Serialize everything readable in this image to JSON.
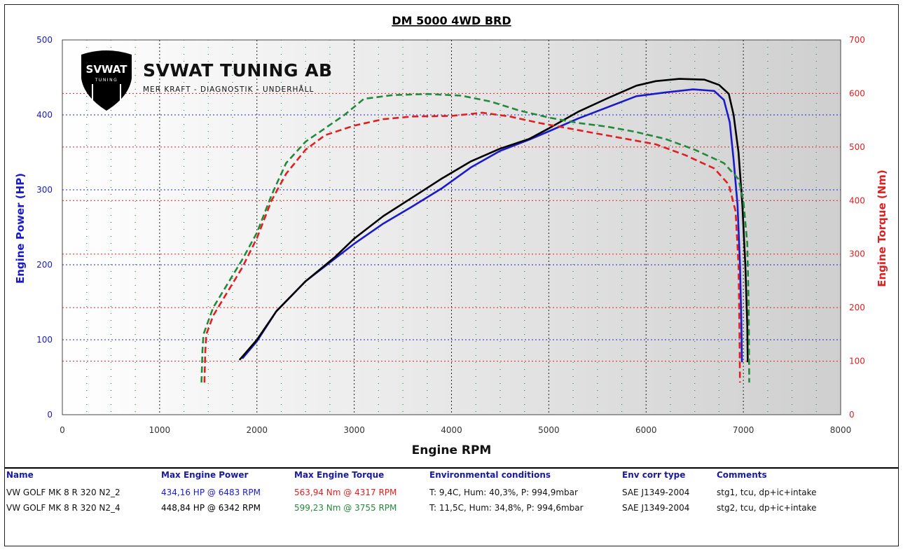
{
  "logo": {
    "badge_text": "SVWAT",
    "badge_sub": "TUNING",
    "name": "SVWAT TUNING AB",
    "tagline": "MER KRAFT - DIAGNOSTIK - UNDERHÅLL"
  },
  "chart_data": {
    "type": "line",
    "title": "DM 5000 4WD BRD",
    "xlabel": "Engine RPM",
    "ylabel_left": "Engine Power (HP)",
    "ylabel_right": "Engine Torque (Nm)",
    "xlim": [
      0,
      8000
    ],
    "ylim_left": [
      0,
      500
    ],
    "ylim_right": [
      0,
      700
    ],
    "x_ticks": [
      "0",
      "1000",
      "2000",
      "3000",
      "4000",
      "5000",
      "6000",
      "7000",
      "8000"
    ],
    "y_left_ticks": [
      "0",
      "100",
      "200",
      "300",
      "400",
      "500"
    ],
    "y_right_ticks": [
      "0",
      "100",
      "200",
      "300",
      "400",
      "500",
      "600",
      "700"
    ],
    "grid": true,
    "series": [
      {
        "name": "VW GOLF MK 8 R 320 N2_2 power",
        "axis": "left",
        "color": "#1a1acc",
        "dash": "solid",
        "points": [
          [
            1850,
            75
          ],
          [
            2000,
            98
          ],
          [
            2200,
            138
          ],
          [
            2500,
            178
          ],
          [
            2800,
            208
          ],
          [
            3000,
            228
          ],
          [
            3300,
            255
          ],
          [
            3600,
            278
          ],
          [
            3900,
            302
          ],
          [
            4200,
            330
          ],
          [
            4500,
            352
          ],
          [
            4800,
            367
          ],
          [
            5000,
            378
          ],
          [
            5300,
            395
          ],
          [
            5600,
            410
          ],
          [
            5900,
            425
          ],
          [
            6200,
            430
          ],
          [
            6483,
            434
          ],
          [
            6700,
            432
          ],
          [
            6800,
            420
          ],
          [
            6860,
            390
          ],
          [
            6900,
            340
          ],
          [
            6940,
            280
          ],
          [
            6965,
            200
          ],
          [
            6980,
            120
          ],
          [
            6985,
            70
          ]
        ]
      },
      {
        "name": "VW GOLF MK 8 R 320 N2_4 power",
        "axis": "left",
        "color": "#000000",
        "dash": "solid",
        "points": [
          [
            1820,
            73
          ],
          [
            2000,
            100
          ],
          [
            2200,
            138
          ],
          [
            2500,
            178
          ],
          [
            2800,
            210
          ],
          [
            3000,
            235
          ],
          [
            3300,
            265
          ],
          [
            3600,
            290
          ],
          [
            3900,
            315
          ],
          [
            4200,
            338
          ],
          [
            4500,
            355
          ],
          [
            4800,
            368
          ],
          [
            5000,
            382
          ],
          [
            5300,
            404
          ],
          [
            5600,
            422
          ],
          [
            5900,
            439
          ],
          [
            6100,
            445
          ],
          [
            6342,
            448
          ],
          [
            6600,
            447
          ],
          [
            6750,
            440
          ],
          [
            6850,
            428
          ],
          [
            6900,
            400
          ],
          [
            6950,
            350
          ],
          [
            6990,
            280
          ],
          [
            7020,
            200
          ],
          [
            7040,
            120
          ],
          [
            7045,
            70
          ]
        ]
      },
      {
        "name": "VW GOLF MK 8 R 320 N2_2 torque",
        "axis": "right",
        "color": "#e02020",
        "dash": "dashed",
        "points": [
          [
            1460,
            60
          ],
          [
            1470,
            120
          ],
          [
            1480,
            150
          ],
          [
            1550,
            185
          ],
          [
            1700,
            230
          ],
          [
            1850,
            275
          ],
          [
            2000,
            330
          ],
          [
            2150,
            400
          ],
          [
            2300,
            450
          ],
          [
            2500,
            495
          ],
          [
            2700,
            522
          ],
          [
            3000,
            540
          ],
          [
            3300,
            552
          ],
          [
            3600,
            557
          ],
          [
            4000,
            558
          ],
          [
            4317,
            564
          ],
          [
            4600,
            557
          ],
          [
            4900,
            545
          ],
          [
            5200,
            535
          ],
          [
            5500,
            525
          ],
          [
            5800,
            515
          ],
          [
            6100,
            505
          ],
          [
            6400,
            485
          ],
          [
            6700,
            460
          ],
          [
            6850,
            430
          ],
          [
            6920,
            380
          ],
          [
            6950,
            280
          ],
          [
            6960,
            150
          ],
          [
            6965,
            60
          ]
        ]
      },
      {
        "name": "VW GOLF MK 8 R 320 N2_4 torque",
        "axis": "right",
        "color": "#228a3a",
        "dash": "dashed",
        "points": [
          [
            1430,
            60
          ],
          [
            1440,
            120
          ],
          [
            1450,
            150
          ],
          [
            1550,
            200
          ],
          [
            1700,
            245
          ],
          [
            1850,
            290
          ],
          [
            2000,
            340
          ],
          [
            2150,
            410
          ],
          [
            2300,
            470
          ],
          [
            2500,
            510
          ],
          [
            2700,
            535
          ],
          [
            2900,
            560
          ],
          [
            3100,
            590
          ],
          [
            3400,
            597
          ],
          [
            3755,
            599
          ],
          [
            4100,
            596
          ],
          [
            4400,
            585
          ],
          [
            4700,
            568
          ],
          [
            5000,
            555
          ],
          [
            5300,
            545
          ],
          [
            5600,
            538
          ],
          [
            5900,
            528
          ],
          [
            6200,
            515
          ],
          [
            6500,
            495
          ],
          [
            6800,
            470
          ],
          [
            6950,
            440
          ],
          [
            7000,
            400
          ],
          [
            7040,
            320
          ],
          [
            7055,
            200
          ],
          [
            7060,
            60
          ]
        ]
      }
    ]
  },
  "legend": {
    "headers": [
      "Name",
      "Max Engine Power",
      "Max Engine Torque",
      "Environmental conditions",
      "Env corr type",
      "Comments"
    ],
    "rows": [
      {
        "name": "VW GOLF MK 8 R 320 N2_2",
        "power": "434,16 HP @ 6483 RPM",
        "torque": "563,94 Nm @ 4317 RPM",
        "env": "T: 9,4C, Hum: 40,3%, P: 994,9mbar",
        "corr": "SAE J1349-2004",
        "comments": "stg1, tcu, dp+ic+intake",
        "power_color": "#1a1acc",
        "torque_color": "#e02020"
      },
      {
        "name": "VW GOLF MK 8 R 320 N2_4",
        "power": "448,84 HP @ 6342 RPM",
        "torque": "599,23 Nm @ 3755 RPM",
        "env": "T: 11,5C, Hum: 34,8%, P: 994,6mbar",
        "corr": "SAE J1349-2004",
        "comments": "stg2, tcu, dp+ic+intake",
        "power_color": "#000000",
        "torque_color": "#228a3a"
      }
    ]
  }
}
